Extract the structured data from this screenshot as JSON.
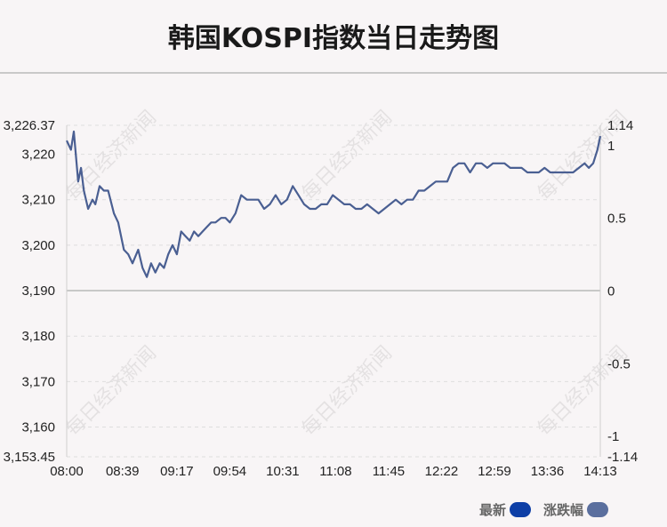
{
  "title": "韩国KOSPI指数当日走势图",
  "watermark": "每日经济新闻",
  "legend": [
    {
      "label": "最新",
      "color": "#0e3fa6"
    },
    {
      "label": "涨跌幅",
      "color": "#5b6f9e"
    }
  ],
  "chart_data": {
    "type": "line",
    "title": "韩国KOSPI指数当日走势图",
    "x_ticks": [
      "08:00",
      "08:39",
      "09:17",
      "09:54",
      "10:31",
      "11:08",
      "11:45",
      "12:22",
      "12:59",
      "13:36",
      "14:13"
    ],
    "y_left": {
      "min": 3153.45,
      "max": 3226.37,
      "ticks": [
        "3,226.37",
        "3,220",
        "3,210",
        "3,200",
        "3,190",
        "3,180",
        "3,170",
        "3,160",
        "3,153.45"
      ]
    },
    "y_right": {
      "min": -1.14,
      "max": 1.14,
      "ticks": [
        "1.14",
        "1",
        "0.5",
        "0",
        "-0.5",
        "-1",
        "-1.14"
      ]
    },
    "baseline": 3190,
    "grid": true,
    "line_color": "#4a5f92",
    "series": [
      {
        "x": [
          "08:00",
          "08:03",
          "08:05",
          "08:08",
          "08:10",
          "08:12",
          "08:15",
          "08:18",
          "08:20",
          "08:23",
          "08:26",
          "08:29",
          "08:33",
          "08:36",
          "08:40",
          "08:43",
          "08:46",
          "08:50",
          "08:53",
          "08:56",
          "08:59",
          "09:02",
          "09:05",
          "09:08",
          "09:11",
          "09:14",
          "09:17",
          "09:20",
          "09:23",
          "09:26",
          "09:29",
          "09:32",
          "09:35",
          "09:38",
          "09:41",
          "09:44",
          "09:48",
          "09:51",
          "09:54",
          "09:58",
          "10:02",
          "10:06",
          "10:10",
          "10:14",
          "10:18",
          "10:22",
          "10:26",
          "10:30",
          "10:34",
          "10:38",
          "10:42",
          "10:46",
          "10:50",
          "10:54",
          "10:58",
          "11:02",
          "11:06",
          "11:10",
          "11:14",
          "11:18",
          "11:22",
          "11:26",
          "11:30",
          "11:34",
          "11:38",
          "11:42",
          "11:46",
          "11:50",
          "11:54",
          "11:58",
          "12:02",
          "12:06",
          "12:10",
          "12:14",
          "12:18",
          "12:22",
          "12:26",
          "12:30",
          "12:34",
          "12:38",
          "12:42",
          "12:46",
          "12:50",
          "12:54",
          "12:58",
          "13:02",
          "13:06",
          "13:10",
          "13:14",
          "13:18",
          "13:22",
          "13:26",
          "13:30",
          "13:34",
          "13:38",
          "13:42",
          "13:46",
          "13:50",
          "13:54",
          "13:58",
          "14:02",
          "14:05",
          "14:08",
          "14:11",
          "14:13"
        ],
        "values": [
          3223,
          3221,
          3225,
          3214,
          3217,
          3212,
          3208,
          3210,
          3209,
          3213,
          3212,
          3212,
          3207,
          3205,
          3199,
          3198,
          3196,
          3199,
          3195,
          3193,
          3196,
          3194,
          3196,
          3195,
          3198,
          3200,
          3198,
          3203,
          3202,
          3201,
          3203,
          3202,
          3203,
          3204,
          3205,
          3205,
          3206,
          3206,
          3205,
          3207,
          3211,
          3210,
          3210,
          3210,
          3208,
          3209,
          3211,
          3209,
          3210,
          3213,
          3211,
          3209,
          3208,
          3208,
          3209,
          3209,
          3211,
          3210,
          3209,
          3209,
          3208,
          3208,
          3209,
          3208,
          3207,
          3208,
          3209,
          3210,
          3209,
          3210,
          3210,
          3212,
          3212,
          3213,
          3214,
          3214,
          3214,
          3217,
          3218,
          3218,
          3216,
          3218,
          3218,
          3217,
          3218,
          3218,
          3218,
          3217,
          3217,
          3217,
          3216,
          3216,
          3216,
          3217,
          3216,
          3216,
          3216,
          3216,
          3216,
          3217,
          3218,
          3217,
          3218,
          3221,
          3224
        ]
      }
    ]
  }
}
